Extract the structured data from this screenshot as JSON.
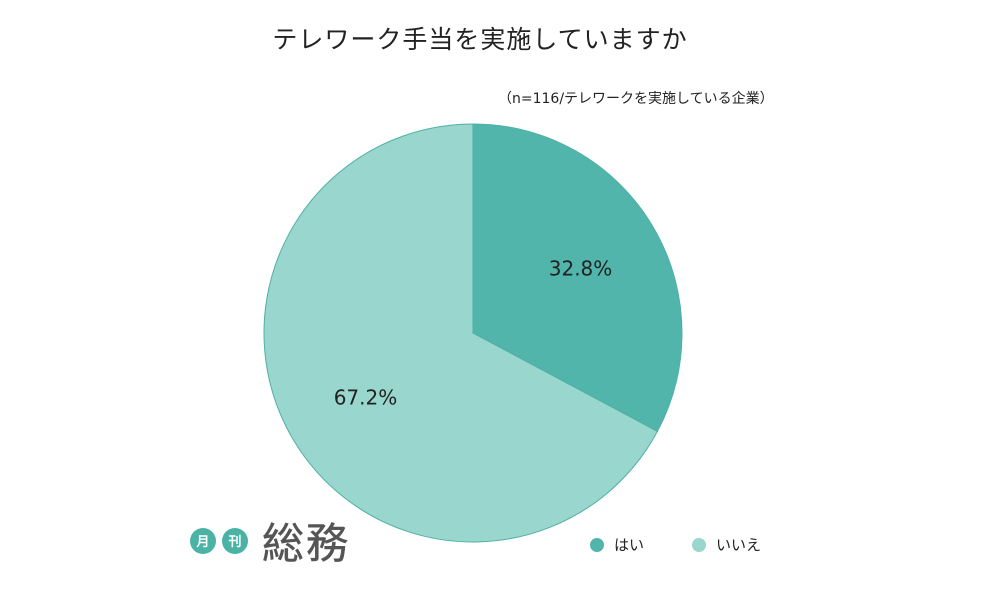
{
  "chart_data": {
    "type": "pie",
    "title": "テレワーク手当を実施していますか",
    "subtitle": "（n=116/テレワークを実施している企業）",
    "slices": [
      {
        "label": "はい",
        "value": 32.8,
        "value_label": "32.8%",
        "color": "#52b5ab"
      },
      {
        "label": "いいえ",
        "value": 67.2,
        "value_label": "67.2%",
        "color": "#99d6cd"
      }
    ],
    "start_angle": "12 o'clock",
    "direction": "clockwise",
    "legend_position": "bottom-right"
  },
  "logo": {
    "badge_1": "月",
    "badge_2": "刊",
    "main": "総務"
  }
}
